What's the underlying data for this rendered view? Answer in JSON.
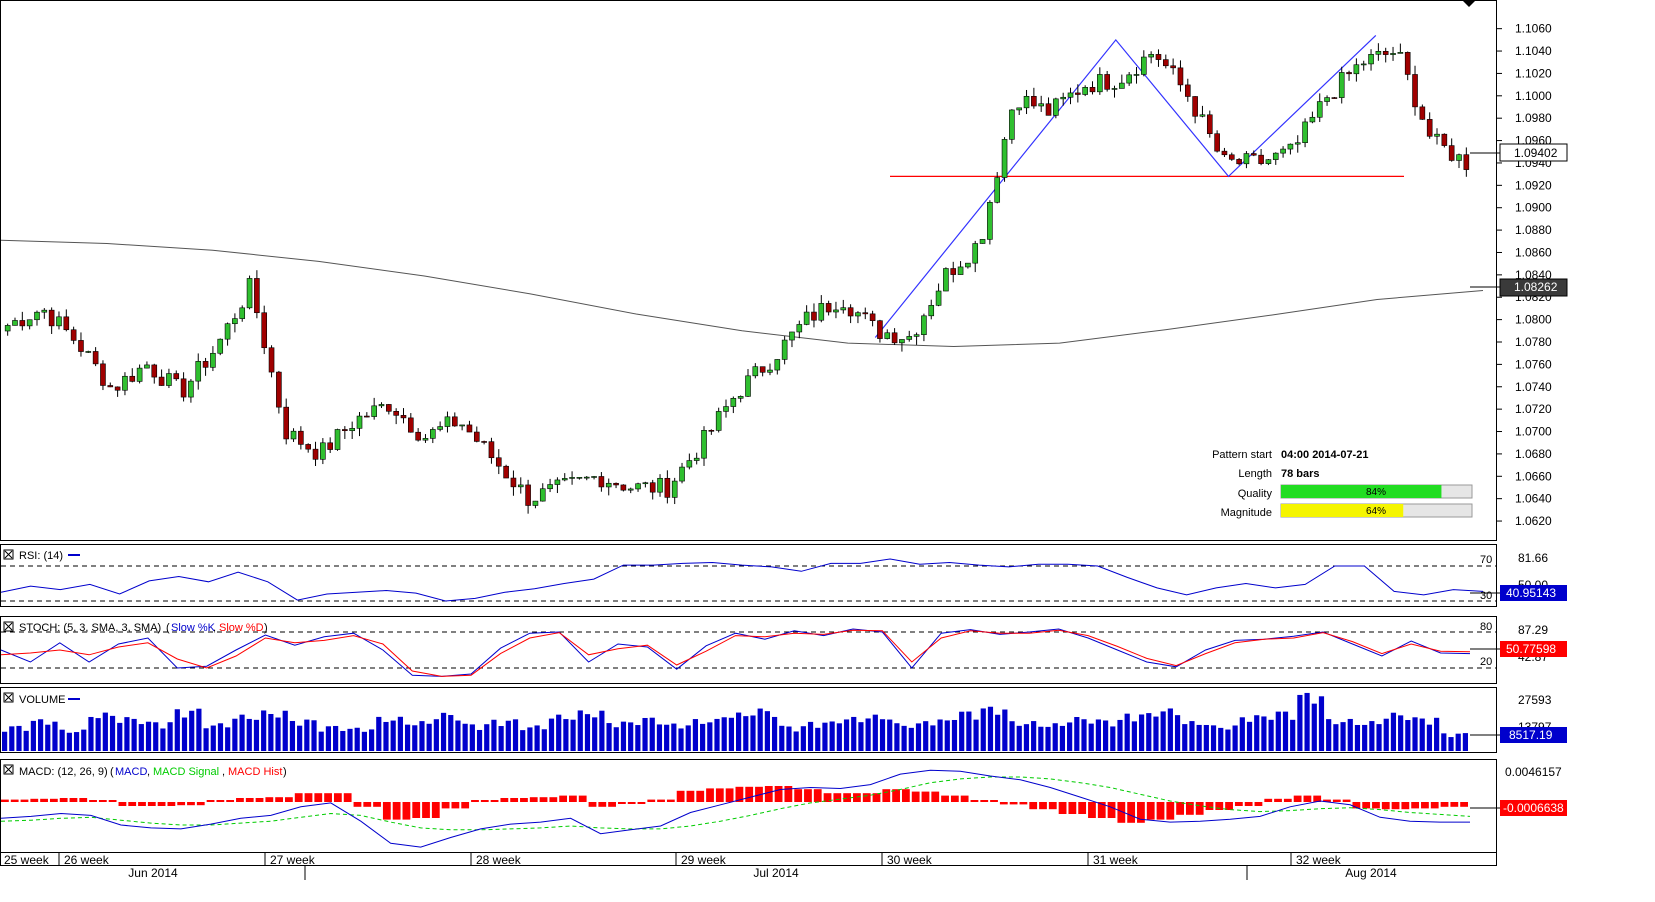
{
  "chart_data": [
    {
      "type": "candlestick",
      "panel": "price",
      "y_axis_ticks": [
        "1.1060",
        "1.1040",
        "1.1020",
        "1.1000",
        "1.0980",
        "1.0960",
        "1.0940",
        "1.0920",
        "1.0900",
        "1.0880",
        "1.0860",
        "1.0840",
        "1.0820",
        "1.0800",
        "1.0780",
        "1.0760",
        "1.0740",
        "1.0720",
        "1.0700",
        "1.0680",
        "1.0660",
        "1.0640",
        "1.0620"
      ],
      "ylim": [
        1.0612,
        1.1074
      ],
      "current_price_label": "1.09402",
      "ma_price_label": "1.08262",
      "support_level": 1.0928,
      "pattern_points": [
        {
          "x": 0.5952,
          "y": 1.0784
        },
        {
          "x": 0.7589,
          "y": 1.105
        },
        {
          "x": 0.8356,
          "y": 1.0928
        },
        {
          "x": 0.9359,
          "y": 1.1054
        }
      ],
      "pattern_info": {
        "pattern_start_label": "Pattern start",
        "pattern_start_value": "04:00 2014-07-21",
        "length_label": "Length",
        "length_value": "78 bars",
        "quality_label": "Quality",
        "quality_value": "84%",
        "quality_fraction": 0.84,
        "magnitude_label": "Magnitude",
        "magnitude_value": "64%",
        "magnitude_fraction": 0.64
      },
      "key_closes": [
        1.0795,
        1.081,
        1.078,
        1.0738,
        1.076,
        1.0735,
        1.0775,
        1.083,
        1.07,
        1.068,
        1.071,
        1.0725,
        1.0695,
        1.071,
        1.0675,
        1.064,
        1.065,
        1.066,
        1.065,
        1.065,
        1.069,
        1.0735,
        1.0765,
        1.08,
        1.082,
        1.079,
        1.0785,
        1.084,
        1.087,
        1.1,
        1.0985,
        1.101,
        1.1015,
        1.104,
        1.1,
        1.094,
        1.094,
        1.095,
        1.1,
        1.103,
        1.104,
        1.096,
        1.094
      ],
      "moving_average": [
        1.0871,
        1.0868,
        1.0862,
        1.0852,
        1.0839,
        1.0823,
        1.0805,
        1.079,
        1.0779,
        1.0776,
        1.0779,
        1.0791,
        1.0804,
        1.0818,
        1.0826
      ]
    },
    {
      "type": "line",
      "panel": "rsi",
      "title": "RSI: (14)",
      "levels": [
        "70",
        "30"
      ],
      "axis_top_label": "81.66",
      "axis_hidden_label": "50.00",
      "current_label": "40.95143",
      "series": [
        {
          "name": "RSI",
          "color": "#0000cc",
          "values": [
            40,
            47,
            43,
            49,
            38,
            53,
            58,
            52,
            63,
            52,
            31,
            38,
            40,
            42,
            39,
            30,
            33,
            40,
            44,
            50,
            55,
            71,
            71,
            73,
            74,
            71,
            69,
            64,
            73,
            73,
            78,
            72,
            74,
            71,
            69,
            72,
            72,
            70,
            57,
            45,
            37,
            45,
            50,
            45,
            49,
            70,
            70,
            41,
            37,
            43,
            41
          ]
        }
      ]
    },
    {
      "type": "line",
      "panel": "stoch",
      "title": "STOCH: (5, 3, SMA, 3, SMA)",
      "legend": [
        "Slow %K",
        "Slow %D"
      ],
      "levels": [
        "80",
        "20"
      ],
      "axis_top_label": "87.29",
      "axis_hidden_label": "42.87",
      "current_label": "50.77598",
      "series": [
        {
          "name": "Slow %K",
          "color": "#0000cc",
          "values": [
            50,
            30,
            62,
            30,
            60,
            70,
            20,
            23,
            50,
            75,
            58,
            72,
            78,
            50,
            8,
            6,
            10,
            53,
            78,
            80,
            30,
            60,
            55,
            18,
            57,
            78,
            68,
            82,
            74,
            85,
            80,
            20,
            78,
            84,
            76,
            80,
            85,
            70,
            50,
            30,
            22,
            50,
            66,
            68,
            73,
            80,
            60,
            40,
            65,
            45,
            44
          ]
        },
        {
          "name": "Slow %D",
          "color": "#ff0000",
          "values": [
            42,
            45,
            50,
            42,
            55,
            62,
            35,
            20,
            40,
            70,
            62,
            66,
            74,
            60,
            15,
            6,
            8,
            44,
            70,
            79,
            42,
            52,
            58,
            25,
            48,
            74,
            72,
            78,
            76,
            83,
            82,
            30,
            70,
            82,
            78,
            78,
            83,
            74,
            56,
            36,
            24,
            44,
            62,
            68,
            70,
            79,
            64,
            44,
            60,
            48,
            47
          ]
        }
      ]
    },
    {
      "type": "bar",
      "panel": "volume",
      "title": "VOLUME",
      "axis_top_label": "27593",
      "axis_hidden_label": "13797",
      "current_label": "8517.19",
      "series": [
        {
          "name": "VOLUME",
          "color": "#0000cc",
          "values": [
            12000,
            15000,
            10000,
            18000,
            16000,
            14000,
            20000,
            13000,
            17000,
            19000,
            15000,
            12000,
            11000,
            16000,
            14000,
            18000,
            13000,
            15000,
            12000,
            17000,
            19000,
            14000,
            16000,
            13000,
            15000,
            18000,
            20000,
            12000,
            14000,
            16000,
            17000,
            13000,
            15000,
            19000,
            21000,
            14000,
            13000,
            16000,
            15000,
            18000,
            20000,
            14000,
            12000,
            17000,
            19000,
            27593,
            15000,
            14000,
            18000,
            16000,
            8517
          ]
        }
      ]
    },
    {
      "type": "line",
      "panel": "macd",
      "title": "MACD: (12, 26, 9)",
      "legend": [
        "MACD",
        "MACD Signal",
        "MACD Hist"
      ],
      "axis_top_label": "0.0046157",
      "current_label": "-0.0006638",
      "series": [
        {
          "name": "MACD",
          "color": "#0000cc",
          "values": [
            -0.0002,
            0.0,
            0.0003,
            0.0001,
            -0.0009,
            -0.0012,
            -0.0013,
            -0.0008,
            -0.0002,
            0.0001,
            0.001,
            0.0014,
            -0.0005,
            -0.0028,
            -0.0032,
            -0.0022,
            -0.0013,
            -0.0008,
            -0.0006,
            -0.0002,
            -0.0018,
            -0.0014,
            -0.001,
            0.0004,
            0.0012,
            0.002,
            0.0028,
            0.003,
            0.0029,
            0.0033,
            0.0044,
            0.0048,
            0.0047,
            0.0042,
            0.0038,
            0.003,
            0.002,
            0.001,
            -0.0003,
            -0.0006,
            -0.0005,
            -0.0003,
            0.0,
            0.001,
            0.0016,
            0.0012,
            -0.0001,
            -0.0005,
            -0.0006,
            -0.0006
          ]
        },
        {
          "name": "MACD Signal",
          "color": "#00cc00",
          "values": [
            -0.0005,
            -0.0004,
            -0.0002,
            -0.0001,
            -0.0004,
            -0.0007,
            -0.0009,
            -0.0009,
            -0.0007,
            -0.0005,
            -0.0001,
            0.0003,
            0.0001,
            -0.0006,
            -0.0012,
            -0.0014,
            -0.0014,
            -0.0013,
            -0.0012,
            -0.001,
            -0.0012,
            -0.0013,
            -0.0013,
            -0.001,
            -0.0005,
            0.0001,
            0.0008,
            0.0014,
            0.0018,
            0.0022,
            0.0028,
            0.0035,
            0.0039,
            0.0041,
            0.0041,
            0.0039,
            0.0035,
            0.003,
            0.0023,
            0.0016,
            0.0011,
            0.0007,
            0.0005,
            0.0006,
            0.0008,
            0.0009,
            0.0007,
            0.0004,
            0.0002,
            0.0
          ]
        },
        {
          "name": "MACD Hist",
          "color": "#ff0000",
          "values": [
            0.0003,
            0.0004,
            0.0005,
            0.0002,
            -0.0005,
            -0.0005,
            -0.0004,
            0.0001,
            0.0005,
            0.0006,
            0.0011,
            0.0011,
            -0.0006,
            -0.0022,
            -0.002,
            -0.0008,
            0.0001,
            0.0005,
            0.0006,
            0.0008,
            -0.0006,
            -0.0001,
            0.0003,
            0.0014,
            0.0017,
            0.0019,
            0.002,
            0.0016,
            0.0011,
            0.0011,
            0.0016,
            0.0013,
            0.0008,
            0.0001,
            -0.0003,
            -0.0009,
            -0.0015,
            -0.002,
            -0.0026,
            -0.0022,
            -0.0016,
            -0.001,
            -0.0005,
            0.0004,
            0.0008,
            0.0003,
            -0.0008,
            -0.0009,
            -0.0008,
            -0.0006
          ]
        }
      ]
    }
  ],
  "x_axis": {
    "week_labels": [
      "25 week",
      "26 week",
      "27 week",
      "28 week",
      "29 week",
      "30 week",
      "31 week",
      "32 week"
    ],
    "month_labels": [
      "Jun 2014",
      "Jul 2014",
      "Aug 2014"
    ]
  },
  "colors": {
    "bull": "#2fbf2f",
    "bear": "#a00000",
    "pattern_line": "#3333ff",
    "support_line": "#ff0000",
    "ma_line": "#555555",
    "quality_bar": "#22dd22",
    "magnitude_bar": "#f5f500"
  }
}
